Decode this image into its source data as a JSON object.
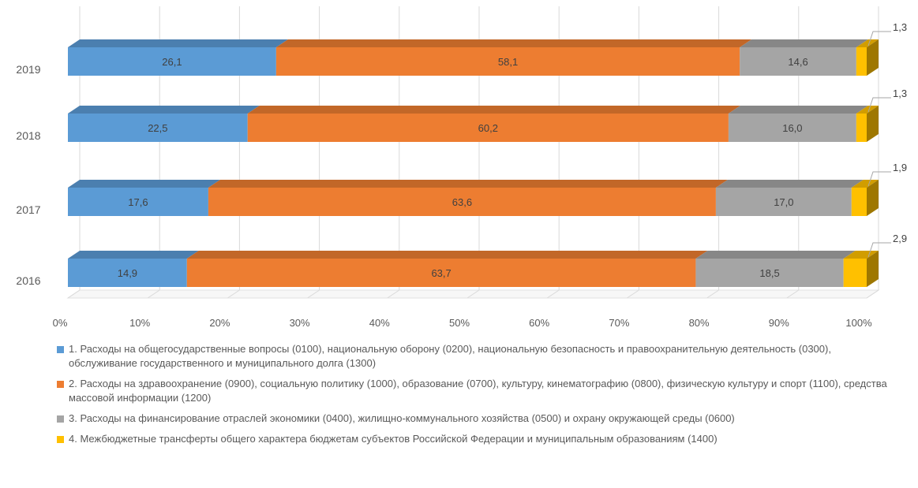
{
  "chart_data": {
    "type": "bar",
    "orientation": "horizontal",
    "stacked": "percent",
    "categories": [
      "2019",
      "2018",
      "2017",
      "2016"
    ],
    "series": [
      {
        "name": "1.     Расходы на общегосударственные вопросы (0100), национальную оборону (0200), национальную безопасность и правоохранительную деятельность (0300), обслуживание государственного и муниципального долга (1300)",
        "color": "#5b9bd5",
        "values": [
          26.1,
          22.5,
          17.6,
          14.9
        ],
        "labels": [
          "26,1",
          "22,5",
          "17,6",
          "14,9"
        ]
      },
      {
        "name": "2.     Расходы на здравоохранение (0900), социальную политику (1000), образование (0700), культуру, кинематографию (0800), физическую культуру и спорт (1100), средства массовой информации (1200)",
        "color": "#ed7d31",
        "values": [
          58.1,
          60.2,
          63.6,
          63.7
        ],
        "labels": [
          "58,1",
          "60,2",
          "63,6",
          "63,7"
        ]
      },
      {
        "name": "3.     Расходы на финансирование отраслей экономики (0400), жилищно-коммунального хозяйства (0500) и охрану окружающей среды (0600)",
        "color": "#a5a5a5",
        "values": [
          14.6,
          16.0,
          17.0,
          18.5
        ],
        "labels": [
          "14,6",
          "16,0",
          "17,0",
          "18,5"
        ]
      },
      {
        "name": "4.     Межбюджетные трансферты общего характера бюджетам субъектов Российской Федерации и муниципальным образованиям (1400)",
        "color": "#ffc000",
        "values": [
          1.3,
          1.3,
          1.9,
          2.9
        ],
        "labels": [
          "1,3",
          "1,3",
          "1,9",
          "2,9"
        ]
      }
    ],
    "xaxis_ticks": [
      "0%",
      "10%",
      "20%",
      "30%",
      "40%",
      "50%",
      "60%",
      "70%",
      "80%",
      "90%",
      "100%"
    ],
    "xlim": [
      0,
      100
    ],
    "grid": true,
    "legend_position": "bottom",
    "style": "3d"
  }
}
